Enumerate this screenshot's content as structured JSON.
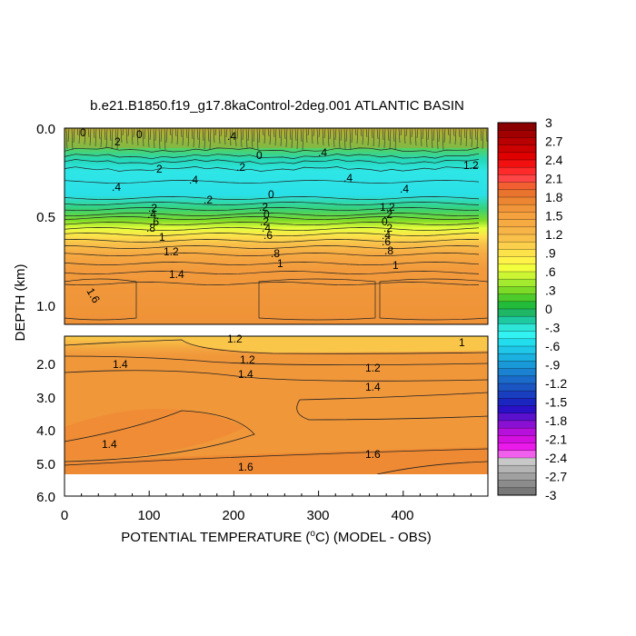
{
  "chart_data": {
    "type": "heatmap",
    "title": "b.e21.B1850.f19_g17.8kaControl-2deg.001 ATLANTIC BASIN",
    "xlabel_main": "POTENTIAL TEMPERATURE (",
    "xlabel_unit_sup": "o",
    "xlabel_rest": "C) (MODEL - OBS)",
    "ylabel": "DEPTH (km)",
    "xlim": [
      0,
      500
    ],
    "x_ticks": [
      "0",
      "100",
      "200",
      "300",
      "400"
    ],
    "upper_panel": {
      "ylim_km": [
        0.0,
        1.1
      ],
      "y_ticks": [
        "0.0",
        "0.5",
        "1.0"
      ]
    },
    "lower_panel": {
      "ylim_km": [
        1.1,
        6.0
      ],
      "y_ticks": [
        "2.0",
        "3.0",
        "4.0",
        "5.0",
        "6.0"
      ]
    },
    "colorbar": {
      "tick_labels": [
        "3",
        "2.7",
        "2.4",
        "2.1",
        "1.8",
        "1.5",
        "1.2",
        ".9",
        ".6",
        ".3",
        "0",
        "-.3",
        "-.6",
        "-.9",
        "-1.2",
        "-1.5",
        "-1.8",
        "-2.1",
        "-2.4",
        "-2.7",
        "-3"
      ],
      "colors_top_to_bottom": [
        "#8a0000",
        "#a00000",
        "#b80000",
        "#cc0000",
        "#e00000",
        "#f21010",
        "#ff2a2a",
        "#ff4545",
        "#f25f30",
        "#e8742d",
        "#ec8632",
        "#f1953a",
        "#f5a13e",
        "#f6aa42",
        "#f7b447",
        "#f9c04a",
        "#fbd04c",
        "#fde24a",
        "#fff34a",
        "#f2ff3c",
        "#ccf534",
        "#a4ea2e",
        "#7ddb27",
        "#4dcb2a",
        "#22bb3a",
        "#1fb665",
        "#1fc9a0",
        "#2ee6d8",
        "#33f2f2",
        "#22ddee",
        "#1fc7e8",
        "#1ab0e0",
        "#1a99d9",
        "#1a82d1",
        "#1a6bca",
        "#1a55c2",
        "#1a3ec0",
        "#1a26bf",
        "#2a10c6",
        "#5a10cc",
        "#8a10d4",
        "#b810dc",
        "#d410e0",
        "#ea1aea",
        "#f060ec",
        "#c8c8c8",
        "#b4b4b4",
        "#a0a0a0",
        "#8c8c8c",
        "#787878"
      ]
    },
    "contour_labels_upper": [
      "0",
      "0",
      ".4",
      "2",
      ".2",
      "2",
      ".4",
      ".4",
      "0",
      ".4",
      ".4",
      ".4",
      ".2",
      "0",
      ".2",
      ".4",
      ".6",
      ".8",
      "1",
      "1.2",
      "1.4",
      ".2",
      "0",
      ".2",
      ".4",
      ".6",
      ".8",
      "1",
      "1.2",
      ".2",
      "0",
      ".2",
      ".4",
      ".6",
      ".8",
      "1",
      "1.2",
      "1.6"
    ],
    "contour_labels_lower": [
      "1.2",
      "1.2",
      "1.4",
      "1.4",
      "1.2",
      "1.4",
      "1",
      "1.4",
      "1.6",
      "1.6"
    ]
  }
}
